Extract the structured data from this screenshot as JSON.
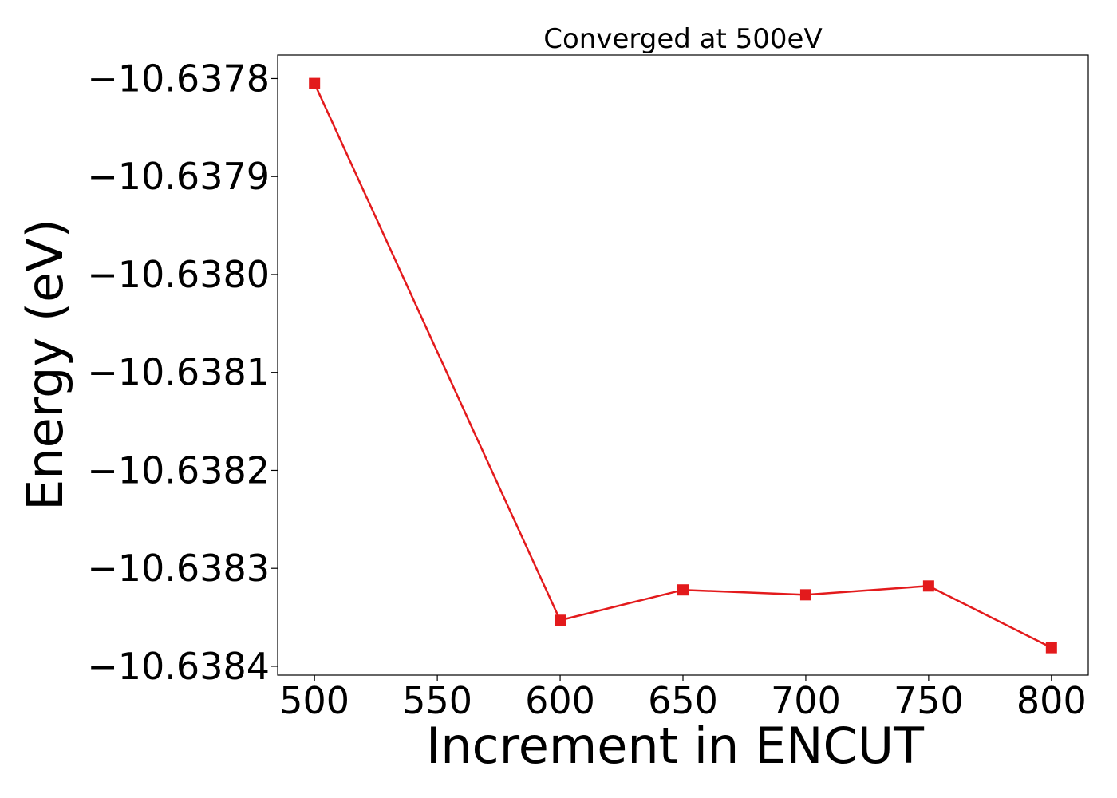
{
  "chart_data": {
    "type": "line",
    "title": "Converged at 500eV",
    "xlabel": "Increment in ENCUT",
    "ylabel": "Energy (eV)",
    "x": [
      500,
      600,
      650,
      700,
      750,
      800
    ],
    "series": [
      {
        "name": "",
        "color": "#e31a1c",
        "marker": "square",
        "values": [
          -10.637805,
          -10.638353,
          -10.638322,
          -10.638327,
          -10.638318,
          -10.638381
        ]
      }
    ],
    "xlim": [
      485,
      815
    ],
    "ylim": [
      -10.638409,
      -10.637776
    ],
    "xticks": [
      500,
      550,
      600,
      650,
      700,
      750,
      800
    ],
    "xtick_labels": [
      "500",
      "550",
      "600",
      "650",
      "700",
      "750",
      "800"
    ],
    "yticks": [
      -10.6378,
      -10.6379,
      -10.638,
      -10.6381,
      -10.6382,
      -10.6383,
      -10.6384
    ],
    "ytick_labels": [
      "−10.6378",
      "−10.6379",
      "−10.6380",
      "−10.6381",
      "−10.6382",
      "−10.6383",
      "−10.6384"
    ],
    "grid": false,
    "legend": false
  }
}
